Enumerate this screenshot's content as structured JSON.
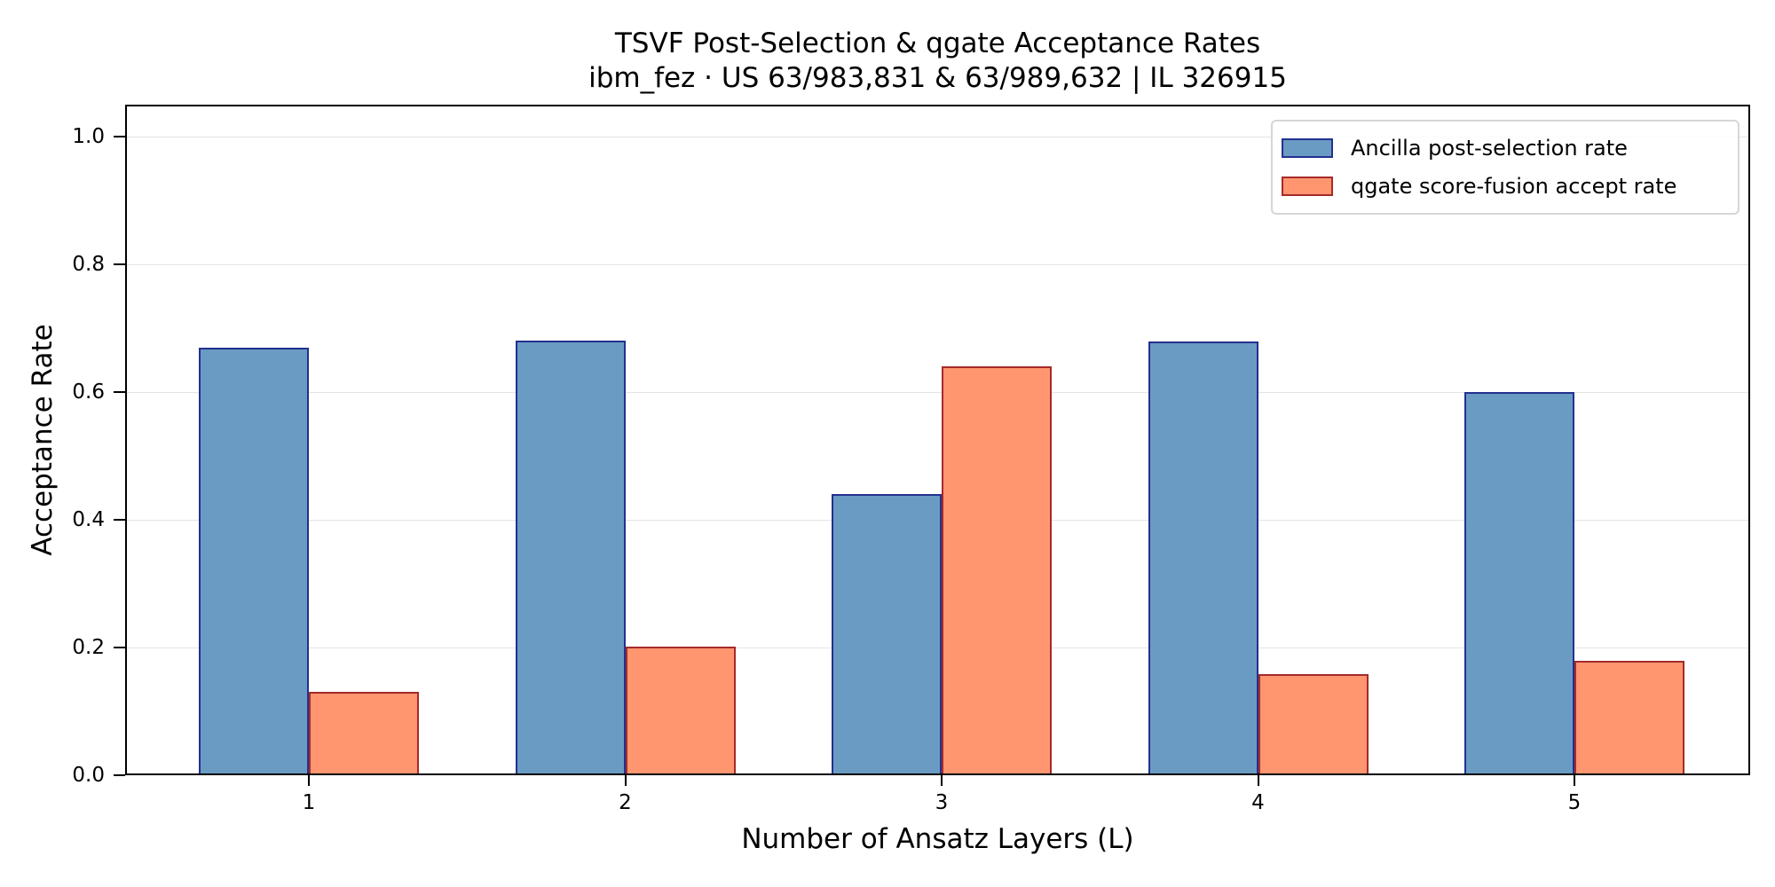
{
  "chart_data": {
    "type": "bar",
    "title": "TSVF Post-Selection & qgate Acceptance Rates",
    "subtitle": "ibm_fez · US 63/983,831 & 63/989,632 | IL 326915",
    "xlabel": "Number of Ansatz Layers (L)",
    "ylabel": "Acceptance Rate",
    "categories": [
      "1",
      "2",
      "3",
      "4",
      "5"
    ],
    "series": [
      {
        "name": "Ancilla post-selection rate",
        "color": "#6a9bc3",
        "edge": "#23308f",
        "values": [
          0.667,
          0.678,
          0.437,
          0.677,
          0.597
        ]
      },
      {
        "name": "qgate score-fusion accept rate",
        "color": "#ff9670",
        "edge": "#a52a2a",
        "values": [
          0.128,
          0.199,
          0.637,
          0.156,
          0.177
        ]
      }
    ],
    "ylim": [
      0,
      1.05
    ],
    "yticks": [
      "0.0",
      "0.2",
      "0.4",
      "0.6",
      "0.8",
      "1.0"
    ],
    "grid": "y",
    "legend_position": "upper right"
  }
}
